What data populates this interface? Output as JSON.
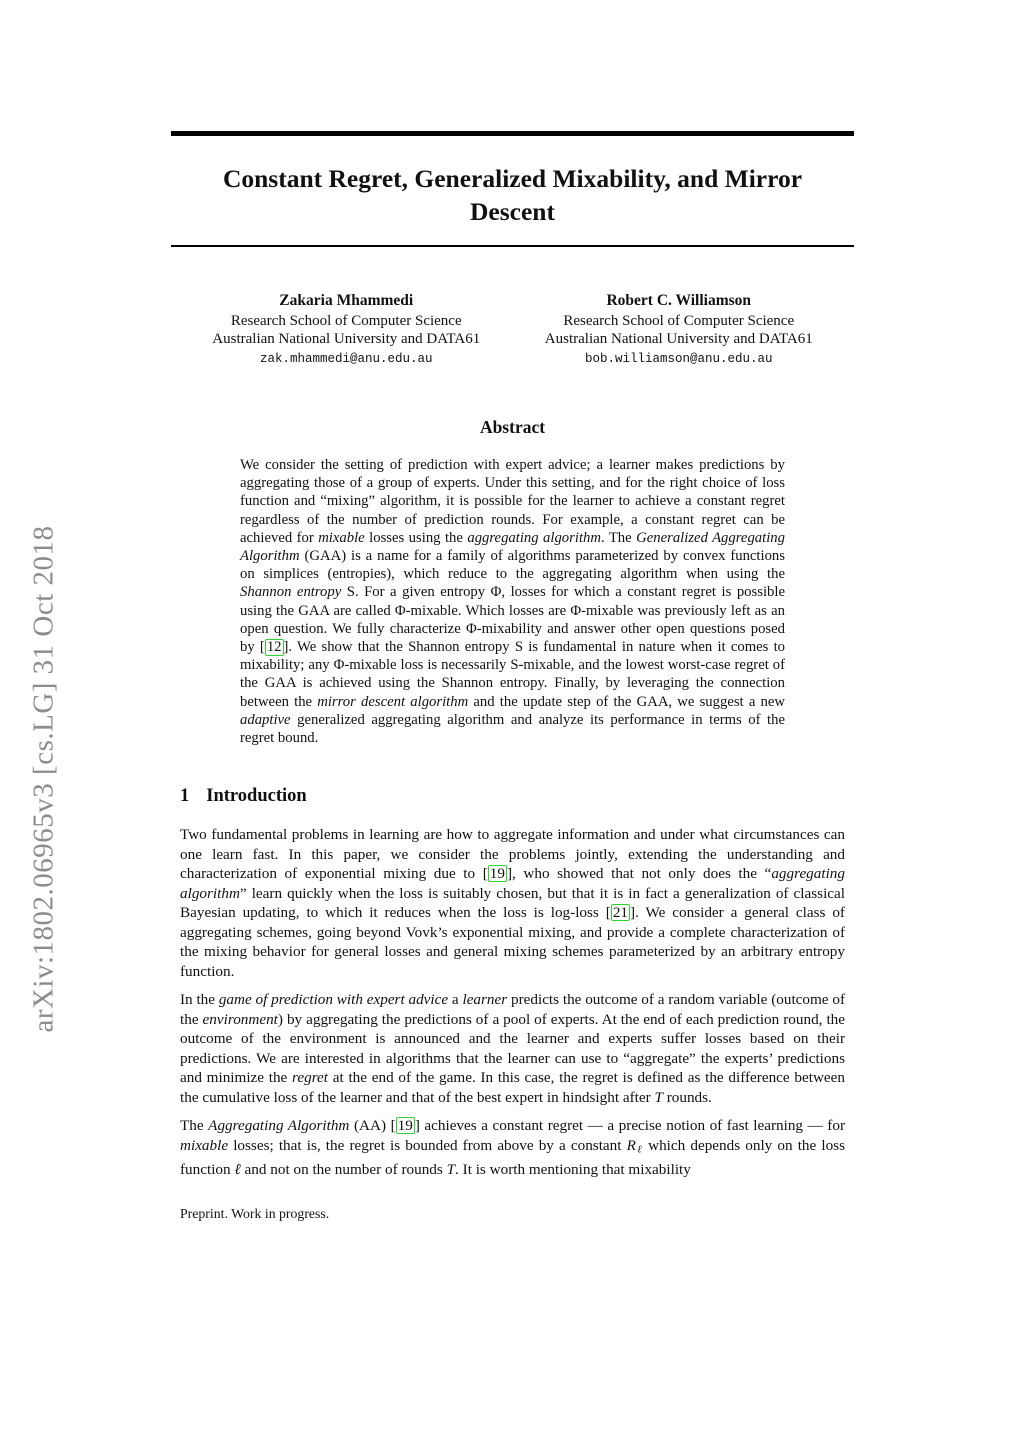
{
  "arxiv_watermark": "arXiv:1802.06965v3  [cs.LG]  31 Oct 2018",
  "title": "Constant Regret, Generalized Mixability, and Mirror Descent",
  "authors": [
    {
      "name": "Zakaria Mhammedi",
      "affiliation1": "Research School of Computer Science",
      "affiliation2": "Australian National University and DATA61",
      "email": "zak.mhammedi@anu.edu.au"
    },
    {
      "name": "Robert C. Williamson",
      "affiliation1": "Research School of Computer Science",
      "affiliation2": "Australian National University and DATA61",
      "email": "bob.williamson@anu.edu.au"
    }
  ],
  "abstract": {
    "heading": "Abstract",
    "body": [
      {
        "t": "We consider the setting of prediction with expert advice; a learner makes predictions by aggregating those of a group of experts.  Under this setting, and for the right choice of loss function and “mixing” algorithm, it is possible for the learner to achieve a constant regret regardless of the number of prediction rounds.  For example, a constant regret can be achieved for "
      },
      {
        "t": "mixable",
        "s": "i"
      },
      {
        "t": " losses using the "
      },
      {
        "t": "aggregating algorithm",
        "s": "i"
      },
      {
        "t": ". The "
      },
      {
        "t": "Generalized Aggregating Algorithm",
        "s": "i"
      },
      {
        "t": " (GAA) is a name for a family of algorithms parameterized by convex functions on simplices (entropies), which reduce to the aggregating algorithm when using the "
      },
      {
        "t": "Shannon entropy",
        "s": "i"
      },
      {
        "t": " S. For a given entropy Φ, losses for which a constant regret is possible using the GAA are called Φ-mixable. Which losses are Φ-mixable was previously left as an open question. We fully characterize Φ-mixability and answer other open questions posed by "
      },
      {
        "t": "12",
        "s": "cite"
      },
      {
        "t": ". We show that the Shannon entropy S is fundamental in nature when it comes to mixability; any Φ-mixable loss is necessarily S-mixable, and the lowest worst-case regret of the GAA is achieved using the Shannon entropy. Finally, by leveraging the connection between the "
      },
      {
        "t": "mirror descent algorithm",
        "s": "i"
      },
      {
        "t": " and the update step of the GAA, we suggest a new "
      },
      {
        "t": "adaptive",
        "s": "i"
      },
      {
        "t": " generalized aggregating algorithm and analyze its performance in terms of the regret bound."
      }
    ]
  },
  "sections": [
    {
      "number": "1",
      "title": "Introduction"
    }
  ],
  "paragraphs": [
    [
      {
        "t": "Two fundamental problems in learning are how to aggregate information and under what circumstances can one learn fast. In this paper, we consider the problems jointly, extending the understanding and characterization of exponential mixing due to "
      },
      {
        "t": "19",
        "s": "cite"
      },
      {
        "t": ", who showed that not only does the “"
      },
      {
        "t": "aggregating algorithm",
        "s": "i"
      },
      {
        "t": "” learn quickly when the loss is suitably chosen, but that it is in fact a generalization of classical Bayesian updating, to which it reduces when the loss is log-loss "
      },
      {
        "t": "21",
        "s": "cite"
      },
      {
        "t": ". We consider a general class of aggregating schemes, going beyond Vovk’s exponential mixing, and provide a complete characterization of the mixing behavior for general losses and general mixing schemes parameterized by an arbitrary entropy function."
      }
    ],
    [
      {
        "t": "In the "
      },
      {
        "t": "game of prediction with expert advice",
        "s": "i"
      },
      {
        "t": " a "
      },
      {
        "t": "learner",
        "s": "i"
      },
      {
        "t": " predicts the outcome of a random variable (outcome of the "
      },
      {
        "t": "environment",
        "s": "i"
      },
      {
        "t": ") by aggregating the predictions of a pool of experts.  At the end of each prediction round, the outcome of the environment is announced and the learner and experts suffer losses based on their predictions. We are interested in algorithms that the learner can use to “aggregate” the experts’ predictions and minimize the "
      },
      {
        "t": "regret",
        "s": "i"
      },
      {
        "t": " at the end of the game. In this case, the regret is defined as the difference between the cumulative loss of the learner and that of the best expert in hindsight after "
      },
      {
        "t": "T",
        "s": "m"
      },
      {
        "t": " rounds."
      }
    ],
    [
      {
        "t": "The "
      },
      {
        "t": "Aggregating Algorithm",
        "s": "i"
      },
      {
        "t": " (AA) "
      },
      {
        "t": "19",
        "s": "cite"
      },
      {
        "t": " achieves a constant regret — a precise notion of fast learning — for "
      },
      {
        "t": "mixable",
        "s": "i"
      },
      {
        "t": " losses; that is, the regret is bounded from above by a constant "
      },
      {
        "t": "R",
        "s": "m"
      },
      {
        "t": "ℓ",
        "s": "sub"
      },
      {
        "t": " which depends only on the loss function "
      },
      {
        "t": "ℓ",
        "s": "m"
      },
      {
        "t": " and not on the number of rounds "
      },
      {
        "t": "T",
        "s": "m"
      },
      {
        "t": ".  It is worth mentioning that mixability"
      }
    ]
  ],
  "footer": "Preprint. Work in progress.",
  "colors": {
    "cite_green": "#2fd42f",
    "watermark_gray": "#8c8c8c",
    "text_black": "#111111"
  }
}
